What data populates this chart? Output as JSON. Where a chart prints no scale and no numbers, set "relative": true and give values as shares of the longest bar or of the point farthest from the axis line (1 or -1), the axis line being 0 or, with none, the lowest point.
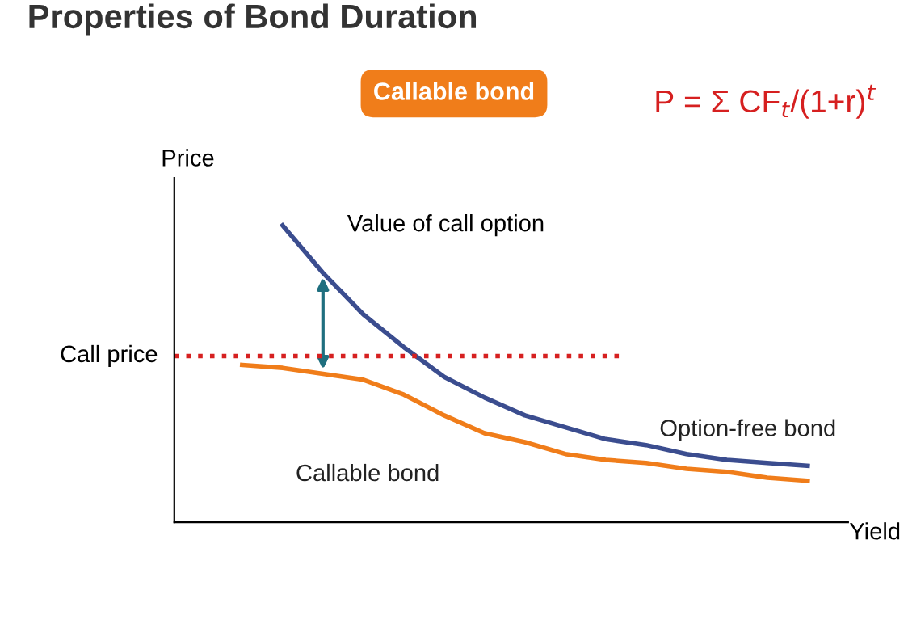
{
  "chart_data": {
    "type": "line",
    "title": "Properties of Bond Duration",
    "subtitle": "Callable bond",
    "xlabel": "Yield",
    "ylabel": "Price",
    "relative": true,
    "marker": "none",
    "line_style": "solid",
    "categories": [
      null,
      null,
      null,
      null,
      null,
      null,
      null,
      null,
      null,
      null,
      null,
      null,
      null,
      null,
      null
    ],
    "series": [
      {
        "name": "Option-free bond",
        "color": "#3b4d8f",
        "values": [
          null,
          1.0,
          0.84,
          0.7,
          0.59,
          0.49,
          0.42,
          0.36,
          0.32,
          0.28,
          0.26,
          0.23,
          0.21,
          0.2,
          0.19
        ]
      },
      {
        "name": "Callable bond",
        "color": "#f07d1a",
        "values": [
          0.53,
          0.52,
          0.5,
          0.48,
          0.43,
          0.36,
          0.3,
          0.27,
          0.23,
          0.21,
          0.2,
          0.18,
          0.17,
          0.15,
          0.14
        ]
      }
    ],
    "ref_lines": [
      {
        "axis": "y",
        "value": 0.56,
        "label": "Call price",
        "color": "#d62020",
        "line_style": "dotted"
      }
    ],
    "annotations": [
      "Value of call option",
      "P = Σ CF$_{t}$/(1+r)$^{t}$"
    ]
  }
}
